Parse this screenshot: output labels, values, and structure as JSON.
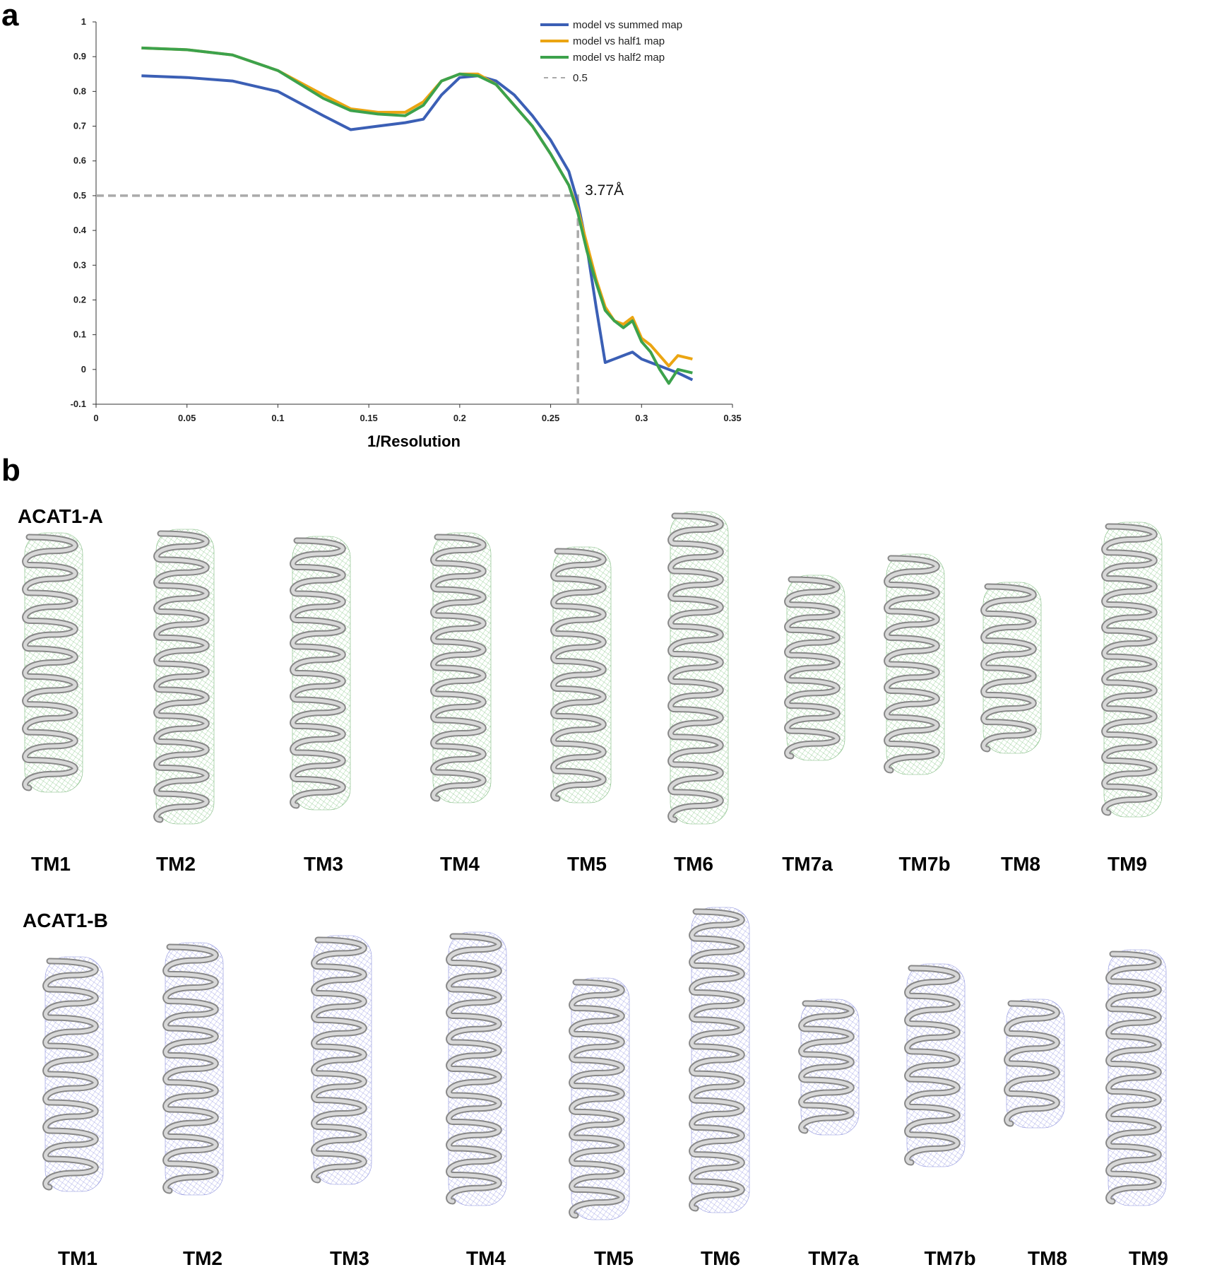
{
  "panel_labels": [
    "a",
    "b"
  ],
  "chart_data": {
    "type": "line",
    "xlabel": "1/Resolution",
    "x": [
      0.025,
      0.05,
      0.075,
      0.1,
      0.125,
      0.14,
      0.155,
      0.17,
      0.18,
      0.19,
      0.2,
      0.21,
      0.22,
      0.23,
      0.24,
      0.25,
      0.26,
      0.265,
      0.27,
      0.275,
      0.28,
      0.285,
      0.29,
      0.295,
      0.3,
      0.305,
      0.31,
      0.315,
      0.32,
      0.328
    ],
    "series": [
      {
        "name": "model vs summed map",
        "color": "#3b5fb5",
        "values": [
          0.845,
          0.84,
          0.83,
          0.8,
          0.73,
          0.69,
          0.7,
          0.71,
          0.72,
          0.79,
          0.84,
          0.845,
          0.83,
          0.79,
          0.73,
          0.66,
          0.57,
          0.48,
          0.35,
          0.18,
          0.02,
          0.03,
          0.04,
          0.05,
          0.03,
          0.02,
          0.01,
          0.0,
          -0.01,
          -0.03
        ]
      },
      {
        "name": "model vs half1 map",
        "color": "#eba512",
        "values": [
          0.925,
          0.92,
          0.905,
          0.86,
          0.79,
          0.75,
          0.74,
          0.74,
          0.77,
          0.83,
          0.85,
          0.85,
          0.82,
          0.76,
          0.7,
          0.62,
          0.53,
          0.46,
          0.36,
          0.26,
          0.18,
          0.14,
          0.13,
          0.15,
          0.09,
          0.07,
          0.04,
          0.01,
          0.04,
          0.03
        ]
      },
      {
        "name": "model vs half2 map",
        "color": "#3ca24c",
        "values": [
          0.925,
          0.92,
          0.905,
          0.86,
          0.78,
          0.745,
          0.735,
          0.73,
          0.76,
          0.83,
          0.85,
          0.845,
          0.82,
          0.76,
          0.7,
          0.62,
          0.53,
          0.45,
          0.34,
          0.25,
          0.17,
          0.14,
          0.12,
          0.14,
          0.08,
          0.05,
          0.0,
          -0.04,
          0.0,
          -0.01
        ]
      }
    ],
    "reference_line": {
      "name": "0.5",
      "y": 0.5,
      "x": 0.265,
      "color": "#aaaaaa"
    },
    "annotation": "3.77Å",
    "xlim": [
      0,
      0.35
    ],
    "xticks": [
      0,
      0.05,
      0.1,
      0.15,
      0.2,
      0.25,
      0.3,
      0.35
    ],
    "ylim": [
      -0.1,
      1
    ],
    "yticks": [
      -0.1,
      0,
      0.1,
      0.2,
      0.3,
      0.4,
      0.5,
      0.6,
      0.7,
      0.8,
      0.9,
      1
    ],
    "grid": false,
    "legend": "top-right"
  },
  "panel_b": {
    "groups": [
      {
        "name": "ACAT1-A",
        "helices": [
          "TM1",
          "TM2",
          "TM3",
          "TM4",
          "TM5",
          "TM6",
          "TM7a",
          "TM7b",
          "TM8",
          "TM9"
        ]
      },
      {
        "name": "ACAT1-B",
        "helices": [
          "TM1",
          "TM2",
          "TM3",
          "TM4",
          "TM5",
          "TM6",
          "TM7a",
          "TM7b",
          "TM8",
          "TM9"
        ]
      }
    ]
  }
}
